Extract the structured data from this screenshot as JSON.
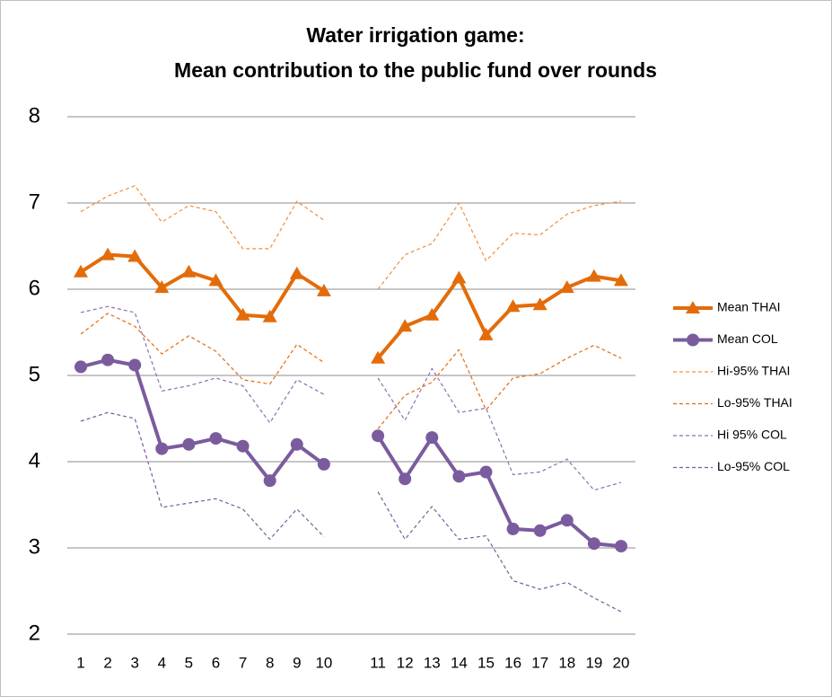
{
  "chart_data": {
    "type": "line",
    "title": [
      "Water irrigation game:",
      "Mean contribution to the public fund over rounds"
    ],
    "categories": [
      "1",
      "2",
      "3",
      "4",
      "5",
      "6",
      "7",
      "8",
      "9",
      "10",
      null,
      "11",
      "12",
      "13",
      "14",
      "15",
      "16",
      "17",
      "18",
      "19",
      "20"
    ],
    "ylim": [
      2,
      8
    ],
    "yticks": [
      2,
      3,
      4,
      5,
      6,
      7,
      8
    ],
    "grid": true,
    "legend": "right",
    "series": [
      {
        "name": "Mean THAI",
        "color": "#e36c0a",
        "marker": "triangle",
        "dashed": false,
        "values": [
          6.2,
          6.4,
          6.38,
          6.02,
          6.2,
          6.1,
          5.7,
          5.68,
          6.18,
          5.98,
          null,
          5.2,
          5.57,
          5.7,
          6.13,
          5.47,
          5.8,
          5.82,
          6.02,
          6.15,
          6.1
        ]
      },
      {
        "name": "Mean COL",
        "color": "#7a5c9e",
        "marker": "circle",
        "dashed": false,
        "values": [
          5.1,
          5.18,
          5.12,
          4.15,
          4.2,
          4.27,
          4.18,
          3.78,
          4.2,
          3.97,
          null,
          4.3,
          3.8,
          4.28,
          3.83,
          3.88,
          3.22,
          3.2,
          3.32,
          3.05,
          3.02
        ]
      },
      {
        "name": "Hi-95% THAI",
        "color": "#f0903a",
        "marker": "none",
        "dashed": true,
        "values": [
          6.9,
          7.08,
          7.2,
          6.78,
          6.97,
          6.9,
          6.47,
          6.47,
          7.02,
          6.8,
          null,
          6.0,
          6.4,
          6.53,
          7.0,
          6.33,
          6.65,
          6.63,
          6.87,
          6.97,
          7.02
        ]
      },
      {
        "name": "Lo-95% THAI",
        "color": "#e36c0a",
        "marker": "none",
        "dashed": true,
        "values": [
          5.48,
          5.72,
          5.57,
          5.25,
          5.46,
          5.28,
          4.95,
          4.9,
          5.36,
          5.15,
          null,
          4.38,
          4.77,
          4.92,
          5.3,
          4.6,
          4.97,
          5.02,
          5.2,
          5.35,
          5.2
        ]
      },
      {
        "name": "Hi 95% COL",
        "color": "#8e6fb0",
        "marker": "none",
        "dashed": true,
        "values": [
          5.73,
          5.8,
          5.73,
          4.82,
          4.88,
          4.97,
          4.88,
          4.45,
          4.95,
          4.78,
          null,
          4.97,
          4.48,
          5.08,
          4.57,
          4.62,
          3.85,
          3.88,
          4.03,
          3.67,
          3.76
        ]
      },
      {
        "name": "Lo-95% COL",
        "color": "#7a5c9e",
        "marker": "none",
        "dashed": true,
        "values": [
          4.47,
          4.57,
          4.5,
          3.47,
          3.52,
          3.57,
          3.45,
          3.1,
          3.45,
          3.13,
          null,
          3.65,
          3.1,
          3.48,
          3.1,
          3.14,
          2.62,
          2.52,
          2.6,
          2.42,
          2.26
        ]
      }
    ]
  }
}
